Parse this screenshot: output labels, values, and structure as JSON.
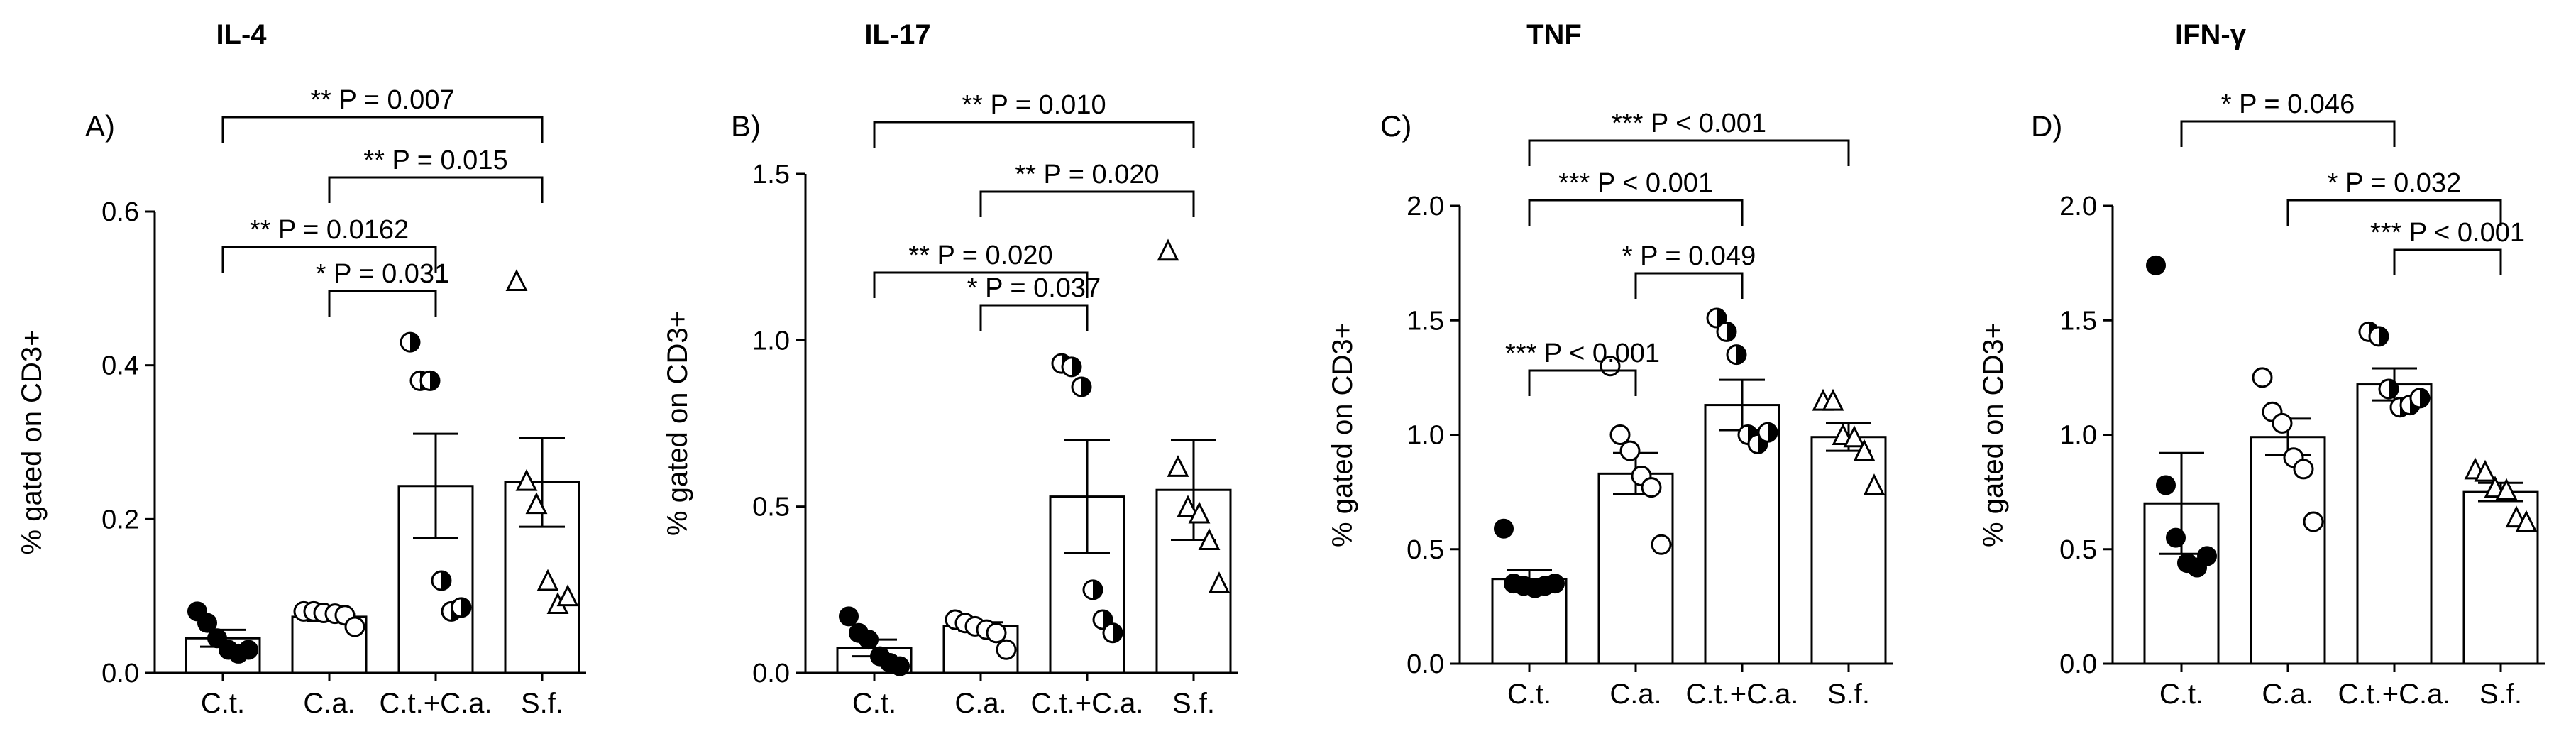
{
  "chart_data": [
    {
      "type": "bar",
      "title": "IL-4",
      "panel_label": "A)",
      "ylabel": "% gated on CD3+",
      "xlabel": "",
      "ylim": [
        0,
        0.6
      ],
      "yticks": [
        0.0,
        0.2,
        0.4,
        0.6
      ],
      "ytick_labels": [
        "0.0",
        "0.2",
        "0.4",
        "0.6"
      ],
      "categories": [
        "C.t.",
        "C.a.",
        "C.t.+C.a.",
        "S.f."
      ],
      "values": [
        0.045,
        0.073,
        0.243,
        0.248
      ],
      "sem": [
        0.011,
        0.006,
        0.068,
        0.058
      ],
      "points": [
        [
          0.08,
          0.065,
          0.045,
          0.03,
          0.025,
          0.03
        ],
        [
          0.08,
          0.08,
          0.078,
          0.077,
          0.075,
          0.06
        ],
        [
          0.43,
          0.38,
          0.38,
          0.12,
          0.08,
          0.085
        ],
        [
          0.51,
          0.25,
          0.22,
          0.12,
          0.09,
          0.1
        ]
      ],
      "comparisons": [
        {
          "from": 0,
          "to": 2,
          "label": "** P = 0.0162"
        },
        {
          "from": 1,
          "to": 2,
          "label": "* P = 0.031"
        },
        {
          "from": 0,
          "to": 3,
          "label": "** P = 0.007"
        },
        {
          "from": 1,
          "to": 3,
          "label": "** P = 0.015"
        }
      ]
    },
    {
      "type": "bar",
      "title": "IL-17",
      "panel_label": "B)",
      "ylabel": "% gated on CD3+",
      "xlabel": "",
      "ylim": [
        0,
        1.5
      ],
      "yticks": [
        0.0,
        0.5,
        1.0,
        1.5
      ],
      "ytick_labels": [
        "0.0",
        "0.5",
        "1.0",
        "1.5"
      ],
      "categories": [
        "C.t.",
        "C.a.",
        "C.t.+C.a.",
        "S.f."
      ],
      "values": [
        0.075,
        0.14,
        0.53,
        0.55
      ],
      "sem": [
        0.025,
        0.012,
        0.17,
        0.15
      ],
      "points": [
        [
          0.17,
          0.12,
          0.1,
          0.05,
          0.03,
          0.02
        ],
        [
          0.16,
          0.15,
          0.14,
          0.13,
          0.12,
          0.07
        ],
        [
          0.93,
          0.92,
          0.86,
          0.25,
          0.16,
          0.12
        ],
        [
          1.27,
          0.62,
          0.5,
          0.48,
          0.4,
          0.27
        ]
      ],
      "comparisons": [
        {
          "from": 1,
          "to": 2,
          "label": "* P = 0.037"
        },
        {
          "from": 0,
          "to": 2,
          "label": "** P = 0.020"
        },
        {
          "from": 1,
          "to": 3,
          "label": "** P = 0.020"
        },
        {
          "from": 0,
          "to": 3,
          "label": "** P = 0.010"
        }
      ]
    },
    {
      "type": "bar",
      "title": "TNF",
      "panel_label": "C)",
      "ylabel": "% gated on CD3+",
      "xlabel": "",
      "ylim": [
        0,
        2.0
      ],
      "yticks": [
        0.0,
        0.5,
        1.0,
        1.5,
        2.0
      ],
      "ytick_labels": [
        "0.0",
        "0.5",
        "1.0",
        "1.5",
        "2.0"
      ],
      "categories": [
        "C.t.",
        "C.a.",
        "C.t.+C.a.",
        "S.f."
      ],
      "values": [
        0.37,
        0.83,
        1.13,
        0.99
      ],
      "sem": [
        0.04,
        0.09,
        0.11,
        0.06
      ],
      "points": [
        [
          0.59,
          0.35,
          0.34,
          0.33,
          0.34,
          0.35
        ],
        [
          1.3,
          1.0,
          0.93,
          0.82,
          0.77,
          0.52
        ],
        [
          1.51,
          1.45,
          1.35,
          1.0,
          0.96,
          1.01
        ],
        [
          1.15,
          1.15,
          1.0,
          0.99,
          0.93,
          0.78
        ]
      ],
      "comparisons": [
        {
          "from": 0,
          "to": 1,
          "label": "*** P < 0.001"
        },
        {
          "from": 1,
          "to": 2,
          "label": "* P = 0.049"
        },
        {
          "from": 0,
          "to": 2,
          "label": "*** P < 0.001"
        },
        {
          "from": 0,
          "to": 3,
          "label": "*** P < 0.001"
        }
      ]
    },
    {
      "type": "bar",
      "title": "IFN-γ",
      "panel_label": "D)",
      "ylabel": "% gated on CD3+",
      "xlabel": "",
      "ylim": [
        0,
        2.0
      ],
      "yticks": [
        0.0,
        0.5,
        1.0,
        1.5,
        2.0
      ],
      "ytick_labels": [
        "0.0",
        "0.5",
        "1.0",
        "1.5",
        "2.0"
      ],
      "categories": [
        "C.t.",
        "C.a.",
        "C.t.+C.a.",
        "S.f."
      ],
      "values": [
        0.7,
        0.99,
        1.22,
        0.75
      ],
      "sem": [
        0.22,
        0.08,
        0.07,
        0.04
      ],
      "points": [
        [
          1.74,
          0.78,
          0.55,
          0.44,
          0.42,
          0.47
        ],
        [
          1.25,
          1.1,
          1.05,
          0.9,
          0.85,
          0.62
        ],
        [
          1.45,
          1.43,
          1.2,
          1.12,
          1.13,
          1.16
        ],
        [
          0.85,
          0.84,
          0.77,
          0.76,
          0.64,
          0.62
        ]
      ],
      "comparisons": [
        {
          "from": 2,
          "to": 3,
          "label": "*** P < 0.001"
        },
        {
          "from": 1,
          "to": 3,
          "label": "* P = 0.032"
        },
        {
          "from": 0,
          "to": 2,
          "label": "* P = 0.046"
        }
      ]
    }
  ],
  "markers": {
    "C.t.": "filled-circle",
    "C.a.": "open-circle",
    "C.t.+C.a.": "half-filled-circle",
    "S.f.": "open-triangle"
  },
  "colors": {
    "ink": "#000000",
    "bar_fill": "#ffffff",
    "background": "#ffffff"
  }
}
